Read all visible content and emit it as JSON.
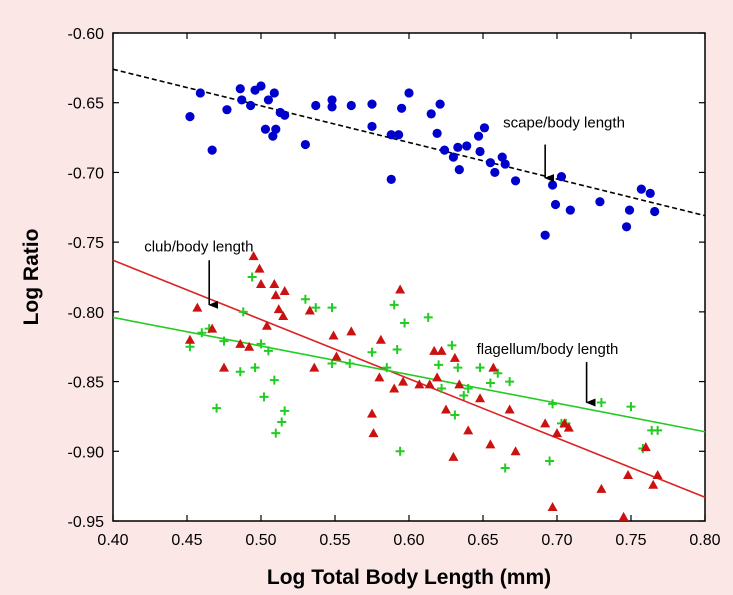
{
  "chart_data": {
    "type": "scatter",
    "xlabel": "Log Total Body Length (mm)",
    "ylabel": "Log Ratio",
    "xlim": [
      0.4,
      0.8
    ],
    "ylim": [
      -0.95,
      -0.6
    ],
    "xticks": [
      "0.40",
      "0.45",
      "0.50",
      "0.55",
      "0.60",
      "0.65",
      "0.70",
      "0.75",
      "0.80"
    ],
    "yticks": [
      "-0.60",
      "-0.65",
      "-0.70",
      "-0.75",
      "-0.80",
      "-0.85",
      "-0.90",
      "-0.95"
    ],
    "grid": false,
    "colors": {
      "background": "#fbe7e6",
      "scape": "#0000cc",
      "club": "#cc1111",
      "flagellum": "#22cc22",
      "scape_fit": "#000000"
    },
    "series": [
      {
        "key": "scape",
        "marker": "circle",
        "color": "#0000cc",
        "points": [
          [
            0.452,
            -0.66
          ],
          [
            0.459,
            -0.643
          ],
          [
            0.467,
            -0.684
          ],
          [
            0.477,
            -0.655
          ],
          [
            0.486,
            -0.64
          ],
          [
            0.487,
            -0.648
          ],
          [
            0.493,
            -0.652
          ],
          [
            0.496,
            -0.641
          ],
          [
            0.5,
            -0.638
          ],
          [
            0.503,
            -0.669
          ],
          [
            0.505,
            -0.648
          ],
          [
            0.508,
            -0.674
          ],
          [
            0.509,
            -0.643
          ],
          [
            0.51,
            -0.669
          ],
          [
            0.513,
            -0.657
          ],
          [
            0.516,
            -0.659
          ],
          [
            0.53,
            -0.68
          ],
          [
            0.537,
            -0.652
          ],
          [
            0.548,
            -0.648
          ],
          [
            0.548,
            -0.653
          ],
          [
            0.561,
            -0.652
          ],
          [
            0.575,
            -0.651
          ],
          [
            0.575,
            -0.667
          ],
          [
            0.588,
            -0.673
          ],
          [
            0.588,
            -0.705
          ],
          [
            0.593,
            -0.673
          ],
          [
            0.595,
            -0.654
          ],
          [
            0.6,
            -0.643
          ],
          [
            0.615,
            -0.658
          ],
          [
            0.619,
            -0.672
          ],
          [
            0.621,
            -0.651
          ],
          [
            0.624,
            -0.684
          ],
          [
            0.63,
            -0.689
          ],
          [
            0.633,
            -0.682
          ],
          [
            0.634,
            -0.698
          ],
          [
            0.639,
            -0.681
          ],
          [
            0.647,
            -0.674
          ],
          [
            0.648,
            -0.685
          ],
          [
            0.651,
            -0.668
          ],
          [
            0.655,
            -0.693
          ],
          [
            0.658,
            -0.7
          ],
          [
            0.663,
            -0.689
          ],
          [
            0.665,
            -0.694
          ],
          [
            0.672,
            -0.706
          ],
          [
            0.692,
            -0.745
          ],
          [
            0.697,
            -0.709
          ],
          [
            0.699,
            -0.723
          ],
          [
            0.703,
            -0.703
          ],
          [
            0.709,
            -0.727
          ],
          [
            0.729,
            -0.721
          ],
          [
            0.747,
            -0.739
          ],
          [
            0.749,
            -0.727
          ],
          [
            0.757,
            -0.712
          ],
          [
            0.763,
            -0.715
          ],
          [
            0.766,
            -0.728
          ]
        ]
      },
      {
        "key": "club",
        "marker": "triangle",
        "color": "#cc1111",
        "points": [
          [
            0.452,
            -0.82
          ],
          [
            0.457,
            -0.797
          ],
          [
            0.467,
            -0.812
          ],
          [
            0.475,
            -0.84
          ],
          [
            0.486,
            -0.823
          ],
          [
            0.492,
            -0.825
          ],
          [
            0.495,
            -0.76
          ],
          [
            0.499,
            -0.769
          ],
          [
            0.5,
            -0.78
          ],
          [
            0.504,
            -0.81
          ],
          [
            0.509,
            -0.78
          ],
          [
            0.51,
            -0.788
          ],
          [
            0.512,
            -0.798
          ],
          [
            0.515,
            -0.803
          ],
          [
            0.516,
            -0.785
          ],
          [
            0.533,
            -0.799
          ],
          [
            0.536,
            -0.84
          ],
          [
            0.549,
            -0.817
          ],
          [
            0.551,
            -0.832
          ],
          [
            0.561,
            -0.814
          ],
          [
            0.575,
            -0.873
          ],
          [
            0.576,
            -0.887
          ],
          [
            0.58,
            -0.847
          ],
          [
            0.581,
            -0.82
          ],
          [
            0.59,
            -0.855
          ],
          [
            0.594,
            -0.784
          ],
          [
            0.596,
            -0.85
          ],
          [
            0.607,
            -0.852
          ],
          [
            0.614,
            -0.852
          ],
          [
            0.617,
            -0.828
          ],
          [
            0.619,
            -0.847
          ],
          [
            0.622,
            -0.828
          ],
          [
            0.625,
            -0.87
          ],
          [
            0.63,
            -0.904
          ],
          [
            0.631,
            -0.833
          ],
          [
            0.634,
            -0.852
          ],
          [
            0.64,
            -0.885
          ],
          [
            0.648,
            -0.862
          ],
          [
            0.655,
            -0.895
          ],
          [
            0.657,
            -0.84
          ],
          [
            0.668,
            -0.87
          ],
          [
            0.672,
            -0.9
          ],
          [
            0.692,
            -0.88
          ],
          [
            0.697,
            -0.94
          ],
          [
            0.7,
            -0.887
          ],
          [
            0.705,
            -0.88
          ],
          [
            0.708,
            -0.883
          ],
          [
            0.73,
            -0.927
          ],
          [
            0.745,
            -0.947
          ],
          [
            0.748,
            -0.917
          ],
          [
            0.76,
            -0.897
          ],
          [
            0.765,
            -0.924
          ],
          [
            0.768,
            -0.917
          ]
        ]
      },
      {
        "key": "flagellum",
        "marker": "plus",
        "color": "#22cc22",
        "points": [
          [
            0.452,
            -0.825
          ],
          [
            0.46,
            -0.815
          ],
          [
            0.465,
            -0.812
          ],
          [
            0.47,
            -0.869
          ],
          [
            0.475,
            -0.821
          ],
          [
            0.486,
            -0.843
          ],
          [
            0.488,
            -0.8
          ],
          [
            0.494,
            -0.775
          ],
          [
            0.496,
            -0.84
          ],
          [
            0.5,
            -0.823
          ],
          [
            0.502,
            -0.861
          ],
          [
            0.505,
            -0.828
          ],
          [
            0.509,
            -0.849
          ],
          [
            0.51,
            -0.887
          ],
          [
            0.514,
            -0.879
          ],
          [
            0.516,
            -0.871
          ],
          [
            0.53,
            -0.791
          ],
          [
            0.537,
            -0.797
          ],
          [
            0.548,
            -0.797
          ],
          [
            0.548,
            -0.837
          ],
          [
            0.56,
            -0.837
          ],
          [
            0.575,
            -0.829
          ],
          [
            0.585,
            -0.84
          ],
          [
            0.59,
            -0.795
          ],
          [
            0.592,
            -0.827
          ],
          [
            0.594,
            -0.9
          ],
          [
            0.597,
            -0.808
          ],
          [
            0.613,
            -0.804
          ],
          [
            0.62,
            -0.838
          ],
          [
            0.622,
            -0.855
          ],
          [
            0.629,
            -0.824
          ],
          [
            0.631,
            -0.874
          ],
          [
            0.633,
            -0.84
          ],
          [
            0.637,
            -0.86
          ],
          [
            0.64,
            -0.855
          ],
          [
            0.648,
            -0.84
          ],
          [
            0.655,
            -0.851
          ],
          [
            0.66,
            -0.844
          ],
          [
            0.665,
            -0.912
          ],
          [
            0.668,
            -0.85
          ],
          [
            0.695,
            -0.907
          ],
          [
            0.697,
            -0.866
          ],
          [
            0.703,
            -0.88
          ],
          [
            0.706,
            -0.88
          ],
          [
            0.73,
            -0.865
          ],
          [
            0.75,
            -0.868
          ],
          [
            0.758,
            -0.898
          ],
          [
            0.764,
            -0.885
          ],
          [
            0.768,
            -0.885
          ]
        ]
      }
    ],
    "fit_lines": [
      {
        "key": "scape_fit",
        "style": "dashed",
        "color": "#000000",
        "x": [
          0.4,
          0.8
        ],
        "y": [
          -0.626,
          -0.731
        ]
      },
      {
        "key": "club_fit",
        "style": "solid",
        "color": "#dd2222",
        "x": [
          0.4,
          0.8
        ],
        "y": [
          -0.763,
          -0.933
        ]
      },
      {
        "key": "flagellum_fit",
        "style": "solid",
        "color": "#22cc22",
        "x": [
          0.4,
          0.8
        ],
        "y": [
          -0.804,
          -0.886
        ]
      }
    ],
    "annotations": [
      {
        "key": "scape",
        "text": "scape/body length",
        "arrow_tip": [
          0.692,
          -0.704
        ],
        "arrow_base": [
          0.692,
          -0.68
        ]
      },
      {
        "key": "club",
        "text": "club/body length",
        "arrow_tip": [
          0.465,
          -0.795
        ],
        "arrow_base": [
          0.465,
          -0.763
        ]
      },
      {
        "key": "flagellum",
        "text": "flagellum/body length",
        "arrow_tip": [
          0.72,
          -0.865
        ],
        "arrow_base": [
          0.72,
          -0.836
        ]
      }
    ]
  }
}
